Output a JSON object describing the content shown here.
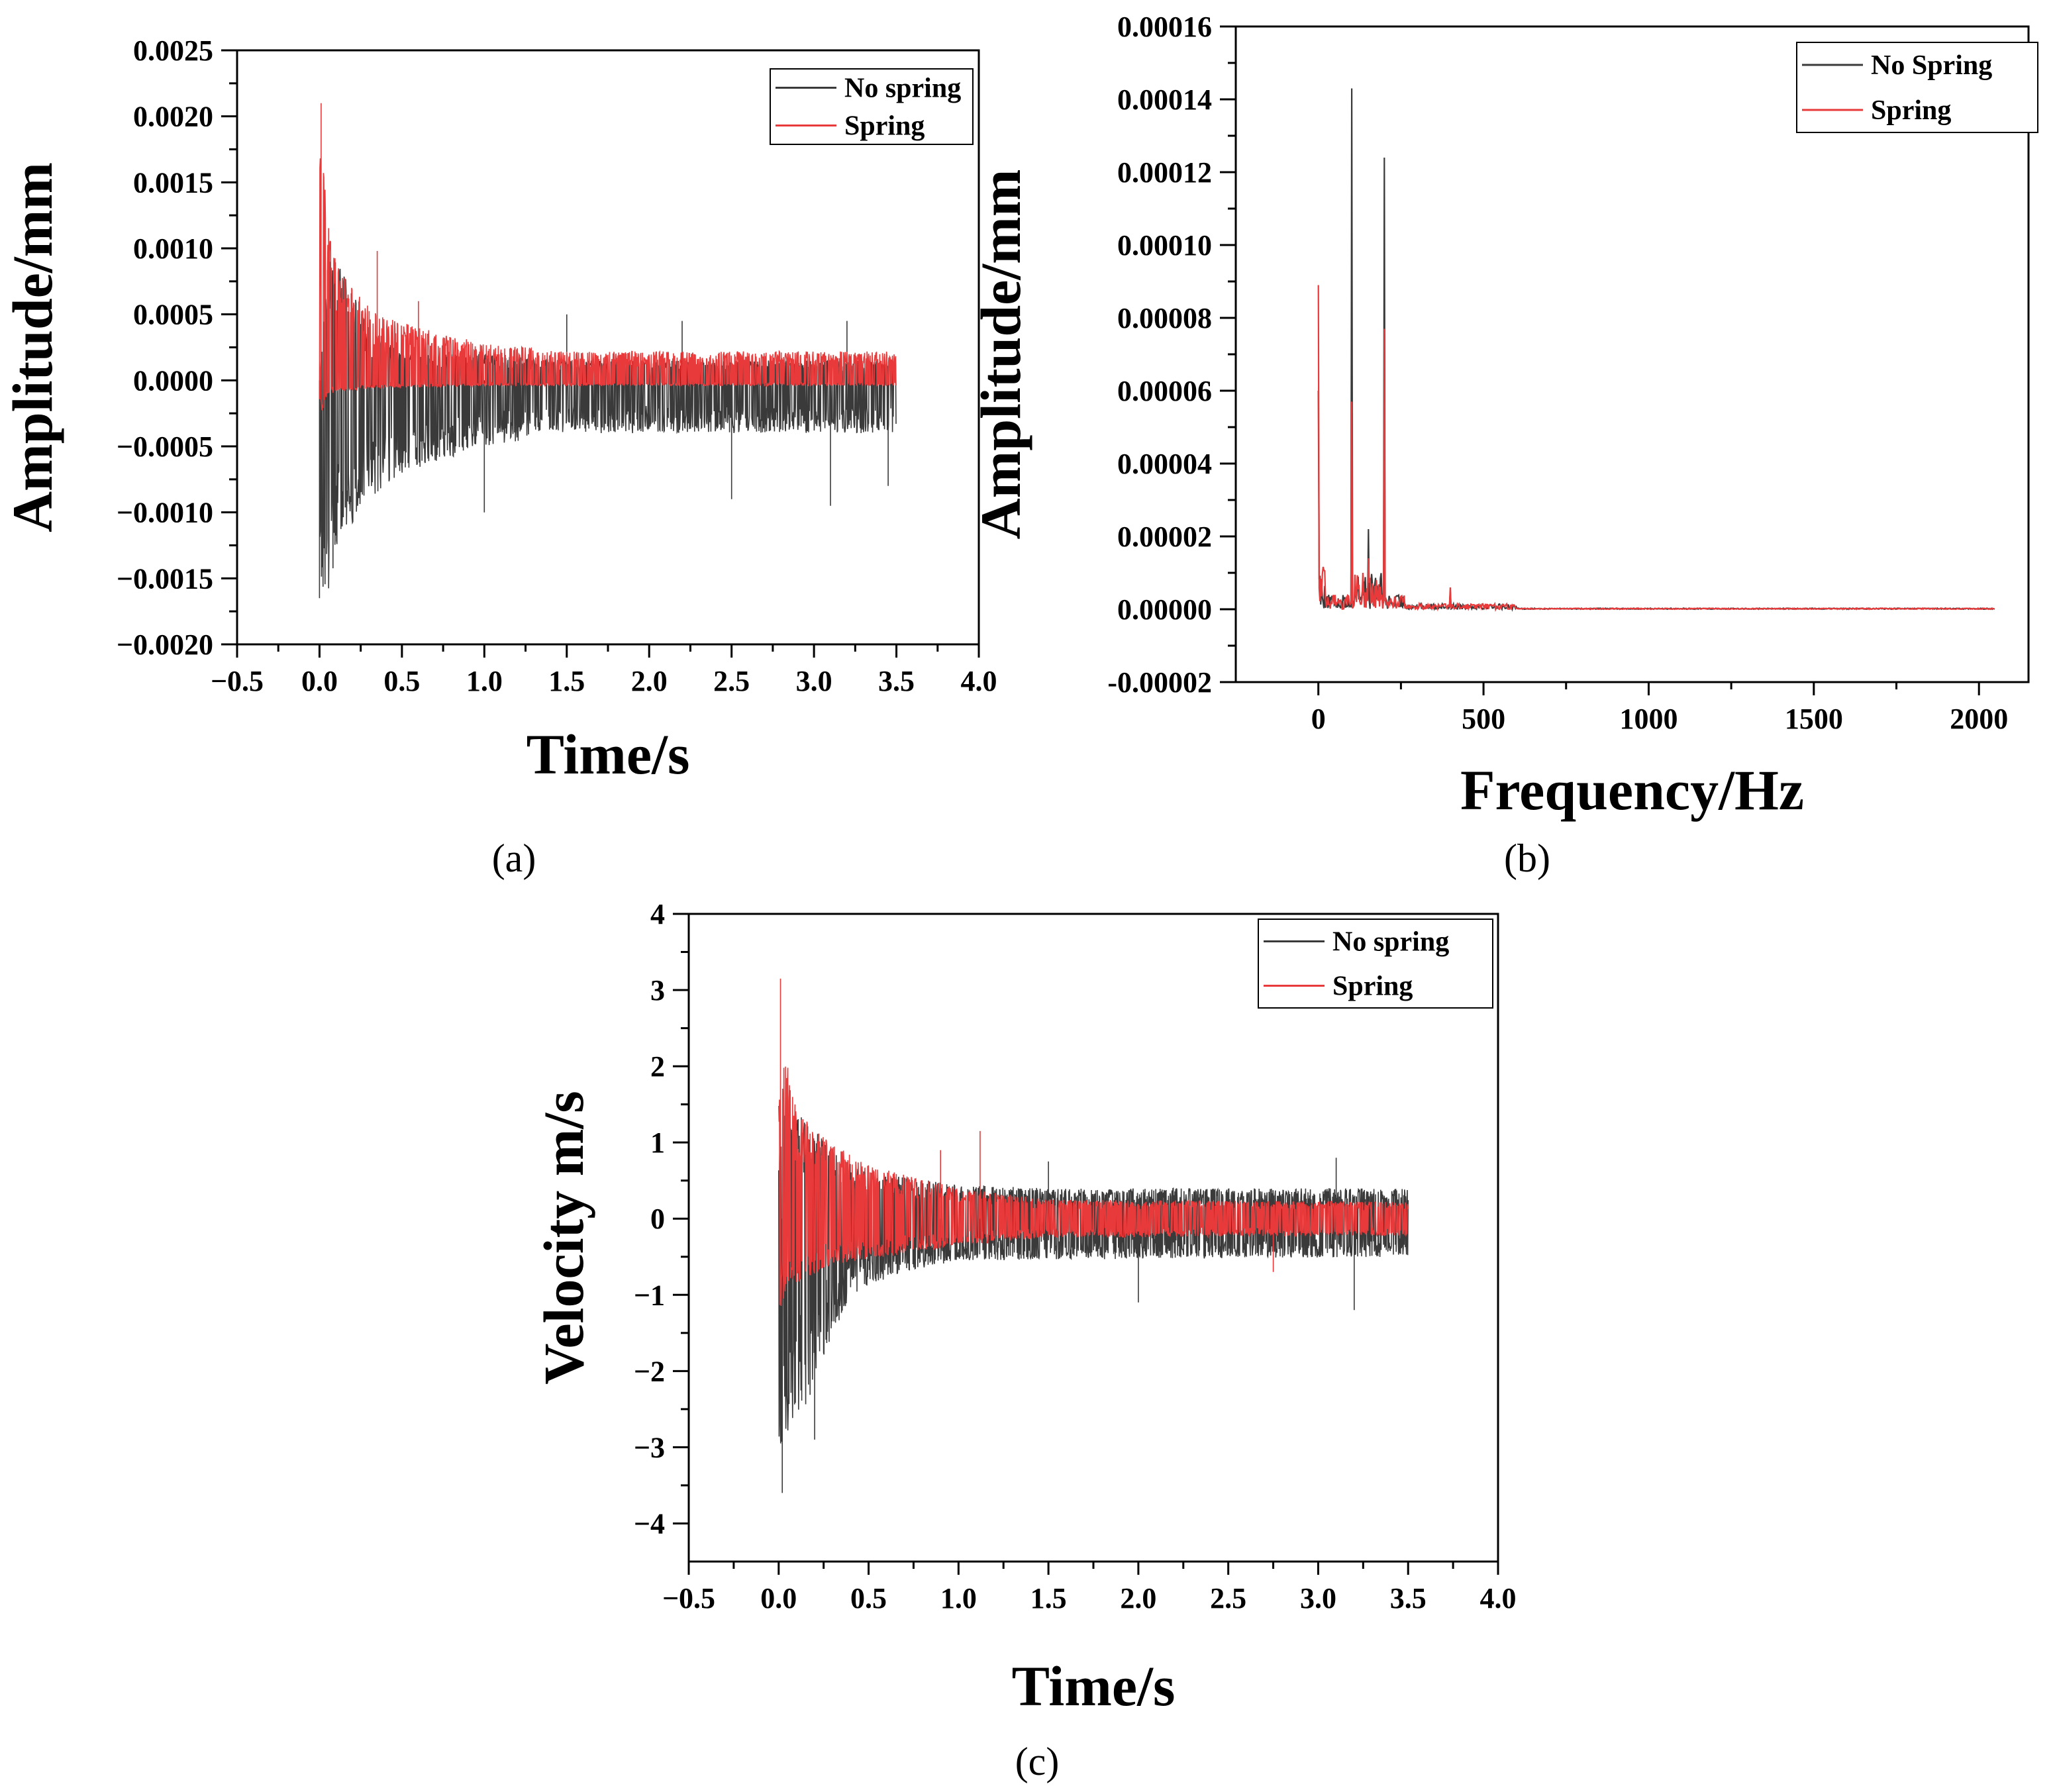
{
  "colors": {
    "no_spring": "#3a3a3a",
    "spring": "#e83a3a",
    "axis": "#000000",
    "background": "#ffffff"
  },
  "chart_data": [
    {
      "id": "a",
      "type": "line",
      "caption": "(a)",
      "xlabel": "Time/s",
      "ylabel": "Amplitude/mm",
      "xlim": [
        -0.5,
        4.0
      ],
      "ylim": [
        -0.002,
        0.0025
      ],
      "xticks": [
        -0.5,
        0.0,
        0.5,
        1.0,
        1.5,
        2.0,
        2.5,
        3.0,
        3.5,
        4.0
      ],
      "xtick_labels": [
        "−0.5",
        "0.0",
        "0.5",
        "1.0",
        "1.5",
        "2.0",
        "2.5",
        "3.0",
        "3.5",
        "4.0"
      ],
      "yticks": [
        -0.002,
        -0.0015,
        -0.001,
        -0.0005,
        0.0,
        0.0005,
        0.001,
        0.0015,
        0.002,
        0.0025
      ],
      "ytick_labels": [
        "−0.0020",
        "−0.0015",
        "−0.0010",
        "−0.0005",
        "0.0000",
        "0.0005",
        "0.0010",
        "0.0015",
        "0.0020",
        "0.0025"
      ],
      "legend": {
        "position": "top-right",
        "entries": [
          "No spring",
          "Spring"
        ]
      },
      "series": [
        {
          "name": "No spring",
          "color_key": "no_spring",
          "signal": "envelope",
          "x_range": [
            0.0,
            3.5
          ],
          "envelope_upper": [
            [
              0.0,
              0.0
            ],
            [
              0.01,
              0.0002
            ],
            [
              0.05,
              0.0009
            ],
            [
              0.1,
              0.0009
            ],
            [
              0.2,
              0.0007
            ],
            [
              0.3,
              0.0004
            ],
            [
              0.5,
              0.0002
            ],
            [
              1.0,
              0.0002
            ],
            [
              1.5,
              0.00015
            ],
            [
              3.5,
              0.00015
            ]
          ],
          "envelope_lower": [
            [
              0.0,
              -0.0016
            ],
            [
              0.05,
              -0.0016
            ],
            [
              0.1,
              -0.0014
            ],
            [
              0.2,
              -0.0011
            ],
            [
              0.3,
              -0.0009
            ],
            [
              0.5,
              -0.0007
            ],
            [
              1.0,
              -0.0005
            ],
            [
              1.5,
              -0.0004
            ],
            [
              3.5,
              -0.0004
            ]
          ],
          "spikes": [
            [
              0.0,
              -0.00165
            ],
            [
              1.0,
              -0.001
            ],
            [
              1.5,
              0.0005
            ],
            [
              2.2,
              0.00045
            ],
            [
              2.5,
              -0.0009
            ],
            [
              3.1,
              -0.00095
            ],
            [
              3.2,
              0.00045
            ],
            [
              3.45,
              -0.0008
            ]
          ]
        },
        {
          "name": "Spring",
          "color_key": "spring",
          "signal": "envelope",
          "x_range": [
            0.0,
            3.5
          ],
          "envelope_upper": [
            [
              0.0,
              0.0015
            ],
            [
              0.01,
              0.0021
            ],
            [
              0.05,
              0.0012
            ],
            [
              0.1,
              0.0009
            ],
            [
              0.2,
              0.0007
            ],
            [
              0.35,
              0.0005
            ],
            [
              0.6,
              0.0004
            ],
            [
              1.0,
              0.00028
            ],
            [
              1.5,
              0.00022
            ],
            [
              3.5,
              0.00022
            ]
          ],
          "envelope_lower": [
            [
              0.0,
              -0.0003
            ],
            [
              0.05,
              -0.0001
            ],
            [
              0.3,
              -6e-05
            ],
            [
              1.0,
              -4e-05
            ],
            [
              3.5,
              -4e-05
            ]
          ],
          "spikes": [
            [
              0.01,
              0.0021
            ],
            [
              0.35,
              0.00098
            ],
            [
              0.6,
              0.0006
            ]
          ]
        }
      ]
    },
    {
      "id": "b",
      "type": "line",
      "caption": "(b)",
      "xlabel": "Frequency/Hz",
      "ylabel": "Amplitude/mm",
      "xlim": [
        -250,
        2150
      ],
      "ylim": [
        -2e-05,
        0.00016
      ],
      "xticks": [
        0,
        500,
        1000,
        1500,
        2000
      ],
      "xtick_labels": [
        "0",
        "500",
        "1000",
        "1500",
        "2000"
      ],
      "yticks": [
        -2e-05,
        0.0,
        2e-05,
        4e-05,
        6e-05,
        8e-05,
        0.0001,
        0.00012,
        0.00014,
        0.00016
      ],
      "ytick_labels": [
        "-0.00002",
        "0.00000",
        "0.00002",
        "0.00004",
        "0.00006",
        "0.00008",
        "0.00010",
        "0.00012",
        "0.00014",
        "0.00016"
      ],
      "legend": {
        "position": "top-right",
        "entries": [
          "No Spring",
          "Spring"
        ]
      },
      "series": [
        {
          "name": "No Spring",
          "color_key": "no_spring",
          "signal": "spectrum",
          "x_range": [
            0,
            2048
          ],
          "peaks": [
            [
              0,
              6e-05
            ],
            [
              100,
              0.000143
            ],
            [
              150,
              2.2e-05
            ],
            [
              200,
              0.000124
            ],
            [
              300,
              7e-06
            ],
            [
              400,
              5e-06
            ]
          ]
        },
        {
          "name": "Spring",
          "color_key": "spring",
          "signal": "spectrum",
          "x_range": [
            0,
            2048
          ],
          "peaks": [
            [
              0,
              8.9e-05
            ],
            [
              100,
              5.7e-05
            ],
            [
              150,
              1.4e-05
            ],
            [
              200,
              7.7e-05
            ],
            [
              300,
              9e-06
            ],
            [
              400,
              6e-06
            ]
          ]
        }
      ]
    },
    {
      "id": "c",
      "type": "line",
      "caption": "(c)",
      "xlabel": "Time/s",
      "ylabel": "Velocity m/s",
      "xlim": [
        -0.5,
        4.0
      ],
      "ylim": [
        -4.5,
        4.0
      ],
      "xticks": [
        -0.5,
        0.0,
        0.5,
        1.0,
        1.5,
        2.0,
        2.5,
        3.0,
        3.5,
        4.0
      ],
      "xtick_labels": [
        "−0.5",
        "0.0",
        "0.5",
        "1.0",
        "1.5",
        "2.0",
        "2.5",
        "3.0",
        "3.5",
        "4.0"
      ],
      "yticks": [
        -4,
        -3,
        -2,
        -1,
        0,
        1,
        2,
        3,
        4
      ],
      "ytick_labels": [
        "−4",
        "−3",
        "−2",
        "−1",
        "0",
        "1",
        "2",
        "3",
        "4"
      ],
      "legend": {
        "position": "top-right",
        "entries": [
          "No spring",
          "Spring"
        ]
      },
      "series": [
        {
          "name": "No spring",
          "color_key": "no_spring",
          "signal": "envelope",
          "x_range": [
            0.0,
            3.5
          ],
          "envelope_upper": [
            [
              0.0,
              1.0
            ],
            [
              0.05,
              1.5
            ],
            [
              0.15,
              1.3
            ],
            [
              0.3,
              0.9
            ],
            [
              0.5,
              0.6
            ],
            [
              1.0,
              0.45
            ],
            [
              1.5,
              0.4
            ],
            [
              3.5,
              0.4
            ]
          ],
          "envelope_lower": [
            [
              0.0,
              -3.0
            ],
            [
              0.05,
              -2.8
            ],
            [
              0.15,
              -2.5
            ],
            [
              0.25,
              -1.8
            ],
            [
              0.4,
              -1.0
            ],
            [
              0.7,
              -0.7
            ],
            [
              1.0,
              -0.55
            ],
            [
              3.5,
              -0.5
            ]
          ],
          "spikes": [
            [
              0.02,
              -3.6
            ],
            [
              0.2,
              -2.9
            ],
            [
              2.0,
              -1.1
            ],
            [
              3.2,
              -1.2
            ],
            [
              3.1,
              0.8
            ],
            [
              1.5,
              0.75
            ]
          ]
        },
        {
          "name": "Spring",
          "color_key": "spring",
          "signal": "envelope",
          "x_range": [
            0.0,
            3.5
          ],
          "envelope_upper": [
            [
              0.0,
              1.5
            ],
            [
              0.02,
              2.4
            ],
            [
              0.1,
              1.4
            ],
            [
              0.3,
              1.0
            ],
            [
              0.5,
              0.7
            ],
            [
              1.0,
              0.4
            ],
            [
              1.5,
              0.25
            ],
            [
              3.5,
              0.22
            ]
          ],
          "envelope_lower": [
            [
              0.0,
              -1.3
            ],
            [
              0.05,
              -0.9
            ],
            [
              0.3,
              -0.6
            ],
            [
              0.6,
              -0.5
            ],
            [
              1.0,
              -0.35
            ],
            [
              1.5,
              -0.25
            ],
            [
              3.5,
              -0.22
            ]
          ],
          "spikes": [
            [
              0.01,
              3.15
            ],
            [
              1.12,
              1.15
            ],
            [
              0.9,
              0.9
            ],
            [
              2.75,
              -0.7
            ]
          ]
        }
      ]
    }
  ]
}
